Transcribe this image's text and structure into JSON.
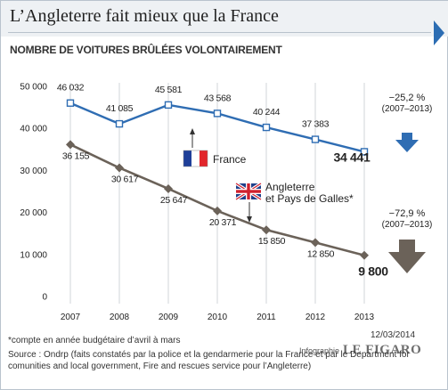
{
  "header": {
    "title": "L’Angleterre fait mieux que la France",
    "subtitle": "NOMBRE DE VOITURES BRÛLÉES VOLONTAIREMENT"
  },
  "chart_data": {
    "type": "line",
    "title": "L’Angleterre fait mieux que la France",
    "subtitle": "NOMBRE DE VOITURES BRÛLÉES VOLONTAIREMENT",
    "xlabel": "",
    "ylabel": "",
    "x": [
      "2007",
      "2008",
      "2009",
      "2010",
      "2011",
      "2012",
      "2013"
    ],
    "ylim": [
      0,
      50000
    ],
    "yticks": [
      0,
      10000,
      20000,
      30000,
      40000,
      50000
    ],
    "ytick_labels": [
      "0",
      "10 000",
      "20 000",
      "30 000",
      "40 000",
      "50 000"
    ],
    "grid": true,
    "series": [
      {
        "name": "France",
        "color": "#2f6db3",
        "marker": "open-square",
        "values": [
          46032,
          41085,
          45581,
          43568,
          40244,
          37383,
          34441
        ],
        "labels": [
          "46 032",
          "41 085",
          "45 581",
          "43 568",
          "40 244",
          "37 383",
          "34 441"
        ]
      },
      {
        "name": "Angleterre et Pays de Galles*",
        "name_lines": [
          "Angleterre",
          "et Pays de Galles*"
        ],
        "color": "#6b6259",
        "marker": "filled-diamond",
        "values": [
          36155,
          30617,
          25647,
          20371,
          15850,
          12850,
          9800
        ],
        "labels": [
          "36 155",
          "30 617",
          "25 647",
          "20 371",
          "15 850",
          "12 850",
          "9 800"
        ]
      }
    ],
    "annotations": [
      {
        "series": "France",
        "change": "−25,2 %",
        "period": "(2007–2013)",
        "arrow_color": "#2f6db3"
      },
      {
        "series": "Angleterre et Pays de Galles*",
        "change": "−72,9 %",
        "period": "(2007–2013)",
        "arrow_color": "#6b6259"
      }
    ]
  },
  "footer": {
    "footnote": "*compte en année budgétaire d’avril  à mars",
    "source": "Source : Ondrp (faits constatés par la police et la gendarmerie pour la France et  par le Department for comunities and local government, Fire and rescues service pour l’Angleterre)",
    "date": "12/03/2014",
    "credit_prefix": "Infographie",
    "credit_brand": "LE FIGARO"
  },
  "colors": {
    "france": "#2f6db3",
    "england": "#6b6259",
    "grid": "#d0d4d8",
    "header_band": "#eef1f4"
  }
}
